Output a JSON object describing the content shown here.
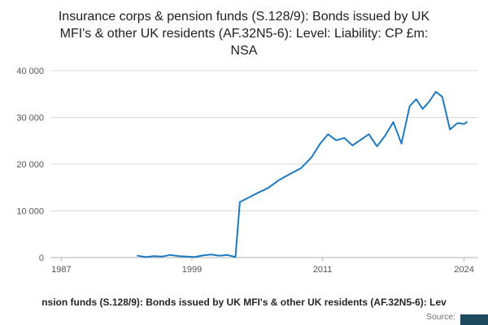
{
  "title": "Insurance corps & pension funds (S.128/9): Bonds issued by UK MFI's & other UK residents (AF.32N5-6): Level: Liability: CP £m: NSA",
  "footer": {
    "caption": "nsion funds (S.128/9): Bonds issued by UK MFI's & other UK residents (AF.32N5-6): Lev",
    "source_label": "Source:"
  },
  "colors": {
    "line": "#1d7ac2",
    "grid": "#d9d9d9",
    "axis": "#b0b0b0",
    "tick_text": "#565656",
    "corner_box": "#1e4a5f"
  },
  "chart_data": {
    "type": "line",
    "title": "Insurance corps & pension funds (S.128/9): Bonds issued by UK MFI's & other UK residents (AF.32N5-6): Level: Liability: CP £m: NSA",
    "xlabel": "",
    "ylabel": "",
    "xlim": [
      1986,
      2025.3
    ],
    "ylim": [
      0,
      40000
    ],
    "grid": "horizontal",
    "legend": "none",
    "x_ticks": [
      1987,
      1999,
      2011,
      2024
    ],
    "y_ticks": [
      0,
      10000,
      20000,
      30000,
      40000
    ],
    "y_tick_labels": [
      "0",
      "10 000",
      "20 000",
      "30 000",
      "40 000"
    ],
    "series_name": "Level: Liability: CP £m: NSA",
    "x": [
      1994,
      1994.75,
      1995.5,
      1996.25,
      1997,
      1997.75,
      1998.5,
      1999.25,
      2000,
      2000.75,
      2001.5,
      2002.25,
      2003,
      2003.4,
      2004,
      2005,
      2006,
      2007,
      2008,
      2009,
      2010,
      2010.75,
      2011.5,
      2012.25,
      2013,
      2013.75,
      2014.5,
      2015.25,
      2016,
      2016.75,
      2017.5,
      2018.25,
      2019,
      2019.6,
      2020.2,
      2020.8,
      2021.4,
      2022,
      2022.7,
      2023.4,
      2024,
      2024.25
    ],
    "values": [
      400,
      100,
      300,
      200,
      550,
      300,
      200,
      100,
      450,
      650,
      400,
      550,
      100,
      11900,
      12600,
      13800,
      14900,
      16600,
      17900,
      19100,
      21500,
      24300,
      26400,
      25100,
      25600,
      24000,
      25200,
      26400,
      23800,
      26100,
      29000,
      24400,
      32400,
      33900,
      31800,
      33400,
      35500,
      34400,
      27400,
      28800,
      28600,
      29000
    ]
  }
}
